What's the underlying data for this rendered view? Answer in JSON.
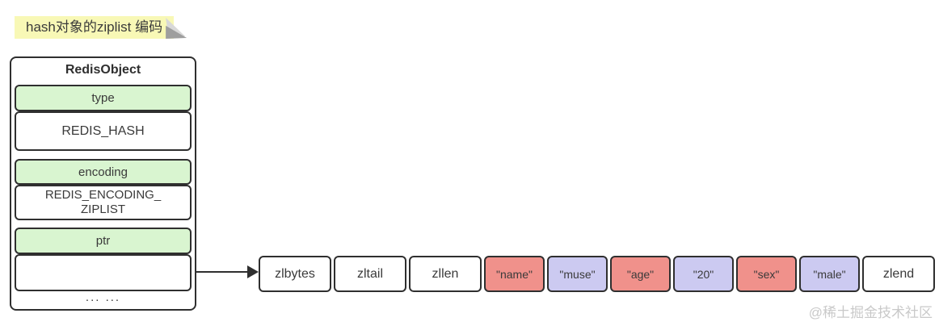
{
  "note": {
    "label": "hash对象的ziplist 编码"
  },
  "redis_object": {
    "title": "RedisObject",
    "fields": [
      {
        "name": "type",
        "value": "REDIS_HASH"
      },
      {
        "name": "encoding",
        "value_lines": [
          "REDIS_ENCODING_",
          "ZIPLIST"
        ]
      },
      {
        "name": "ptr",
        "value": ""
      }
    ],
    "ellipsis": "... ..."
  },
  "ziplist": {
    "cells": [
      {
        "label": "zlbytes",
        "type": "white"
      },
      {
        "label": "zltail",
        "type": "white"
      },
      {
        "label": "zllen",
        "type": "white"
      },
      {
        "label": "\"name\"",
        "type": "red"
      },
      {
        "label": "\"muse\"",
        "type": "purple"
      },
      {
        "label": "\"age\"",
        "type": "red"
      },
      {
        "label": "\"20\"",
        "type": "purple"
      },
      {
        "label": "\"sex\"",
        "type": "red"
      },
      {
        "label": "\"male\"",
        "type": "purple"
      },
      {
        "label": "zlend",
        "type": "white"
      }
    ]
  },
  "watermark": "@稀土掘金技术社区",
  "colors": {
    "note_yellow": "#f8f8b6",
    "field_green": "#d9f5d0",
    "entry_red": "#f0918b",
    "entry_purple": "#cccaf1",
    "border": "#2f2f2f",
    "watermark_gray": "#c9c9c9"
  }
}
